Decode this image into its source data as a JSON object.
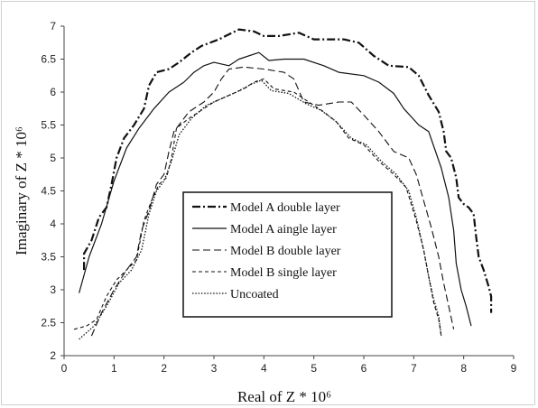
{
  "chart_data": {
    "type": "line",
    "xlabel": "Real of  Z * 10⁶",
    "ylabel": "Imaginary    of  Z * 10⁶",
    "xlim": [
      0,
      9
    ],
    "ylim": [
      2,
      7
    ],
    "x_ticks": [
      "0",
      "1",
      "2",
      "3",
      "4",
      "5",
      "6",
      "7",
      "8",
      "9"
    ],
    "y_ticks": [
      "2",
      "2.5",
      "3",
      "3.5",
      "4",
      "4.5",
      "5",
      "5.5",
      "6",
      "6.5",
      "7"
    ],
    "grid": false,
    "legend_position": "center",
    "series": [
      {
        "name": "Model A double layer",
        "dash": "9 3 2 3",
        "width": 2.2,
        "points": [
          [
            0.4,
            3.3
          ],
          [
            0.4,
            3.55
          ],
          [
            0.55,
            3.75
          ],
          [
            0.7,
            4.1
          ],
          [
            0.85,
            4.25
          ],
          [
            0.95,
            4.6
          ],
          [
            1.05,
            5.0
          ],
          [
            1.2,
            5.3
          ],
          [
            1.4,
            5.5
          ],
          [
            1.6,
            5.75
          ],
          [
            1.7,
            6.1
          ],
          [
            1.85,
            6.3
          ],
          [
            2.1,
            6.35
          ],
          [
            2.3,
            6.45
          ],
          [
            2.55,
            6.6
          ],
          [
            2.75,
            6.7
          ],
          [
            3.1,
            6.8
          ],
          [
            3.5,
            6.95
          ],
          [
            3.8,
            6.92
          ],
          [
            4.0,
            6.85
          ],
          [
            4.3,
            6.85
          ],
          [
            4.7,
            6.9
          ],
          [
            5.0,
            6.8
          ],
          [
            5.6,
            6.8
          ],
          [
            5.9,
            6.75
          ],
          [
            6.2,
            6.55
          ],
          [
            6.5,
            6.4
          ],
          [
            6.9,
            6.38
          ],
          [
            7.1,
            6.25
          ],
          [
            7.3,
            5.95
          ],
          [
            7.5,
            5.7
          ],
          [
            7.6,
            5.4
          ],
          [
            7.65,
            5.1
          ],
          [
            7.75,
            5.0
          ],
          [
            7.85,
            4.7
          ],
          [
            7.9,
            4.4
          ],
          [
            8.0,
            4.3
          ],
          [
            8.1,
            4.25
          ],
          [
            8.2,
            4.15
          ],
          [
            8.25,
            3.8
          ],
          [
            8.3,
            3.5
          ],
          [
            8.4,
            3.3
          ],
          [
            8.5,
            3.05
          ],
          [
            8.55,
            2.9
          ],
          [
            8.55,
            2.65
          ]
        ]
      },
      {
        "name": "Model A aingle layer",
        "dash": "",
        "width": 1.2,
        "points": [
          [
            0.3,
            2.95
          ],
          [
            0.5,
            3.5
          ],
          [
            0.75,
            4.0
          ],
          [
            1.0,
            4.65
          ],
          [
            1.25,
            5.15
          ],
          [
            1.5,
            5.45
          ],
          [
            1.8,
            5.75
          ],
          [
            2.1,
            6.0
          ],
          [
            2.4,
            6.15
          ],
          [
            2.6,
            6.3
          ],
          [
            2.8,
            6.4
          ],
          [
            3.0,
            6.45
          ],
          [
            3.3,
            6.4
          ],
          [
            3.5,
            6.5
          ],
          [
            3.9,
            6.6
          ],
          [
            4.1,
            6.48
          ],
          [
            4.4,
            6.5
          ],
          [
            4.8,
            6.5
          ],
          [
            5.2,
            6.4
          ],
          [
            5.5,
            6.3
          ],
          [
            6.0,
            6.25
          ],
          [
            6.3,
            6.15
          ],
          [
            6.6,
            5.98
          ],
          [
            6.8,
            5.75
          ],
          [
            7.1,
            5.5
          ],
          [
            7.3,
            5.4
          ],
          [
            7.55,
            4.85
          ],
          [
            7.7,
            4.4
          ],
          [
            7.8,
            3.9
          ],
          [
            7.85,
            3.4
          ],
          [
            7.95,
            3.0
          ],
          [
            8.05,
            2.75
          ],
          [
            8.15,
            2.45
          ]
        ]
      },
      {
        "name": "Model B double layer",
        "dash": "8 4",
        "width": 1.1,
        "points": [
          [
            0.55,
            2.3
          ],
          [
            0.75,
            2.65
          ],
          [
            1.0,
            3.0
          ],
          [
            1.25,
            3.3
          ],
          [
            1.45,
            3.5
          ],
          [
            1.55,
            3.9
          ],
          [
            1.7,
            4.2
          ],
          [
            1.85,
            4.6
          ],
          [
            2.0,
            4.75
          ],
          [
            2.1,
            5.1
          ],
          [
            2.2,
            5.4
          ],
          [
            2.5,
            5.7
          ],
          [
            2.8,
            5.85
          ],
          [
            3.0,
            6.0
          ],
          [
            3.15,
            6.2
          ],
          [
            3.3,
            6.35
          ],
          [
            3.6,
            6.38
          ],
          [
            4.0,
            6.35
          ],
          [
            4.4,
            6.3
          ],
          [
            4.6,
            6.2
          ],
          [
            4.8,
            5.85
          ],
          [
            5.1,
            5.8
          ],
          [
            5.5,
            5.85
          ],
          [
            5.75,
            5.85
          ],
          [
            6.0,
            5.65
          ],
          [
            6.3,
            5.4
          ],
          [
            6.6,
            5.1
          ],
          [
            6.9,
            5.0
          ],
          [
            7.05,
            4.75
          ],
          [
            7.2,
            4.35
          ],
          [
            7.35,
            3.95
          ],
          [
            7.5,
            3.5
          ],
          [
            7.6,
            3.1
          ],
          [
            7.7,
            2.75
          ],
          [
            7.8,
            2.4
          ]
        ]
      },
      {
        "name": "Model B single layer",
        "dash": "4 3",
        "width": 1.1,
        "points": [
          [
            0.2,
            2.4
          ],
          [
            0.45,
            2.45
          ],
          [
            0.65,
            2.55
          ],
          [
            0.85,
            2.9
          ],
          [
            1.05,
            3.15
          ],
          [
            1.25,
            3.3
          ],
          [
            1.45,
            3.45
          ],
          [
            1.6,
            4.05
          ],
          [
            1.75,
            4.35
          ],
          [
            1.9,
            4.6
          ],
          [
            2.05,
            4.7
          ],
          [
            2.15,
            5.0
          ],
          [
            2.25,
            5.45
          ],
          [
            2.5,
            5.6
          ],
          [
            2.8,
            5.75
          ],
          [
            3.0,
            5.85
          ],
          [
            3.3,
            5.95
          ],
          [
            3.6,
            6.05
          ],
          [
            3.8,
            6.15
          ],
          [
            4.0,
            6.2
          ],
          [
            4.2,
            6.05
          ],
          [
            4.6,
            6.0
          ],
          [
            4.9,
            5.85
          ],
          [
            5.2,
            5.7
          ],
          [
            5.45,
            5.55
          ],
          [
            5.7,
            5.3
          ],
          [
            6.0,
            5.2
          ],
          [
            6.3,
            4.95
          ],
          [
            6.6,
            4.75
          ],
          [
            6.85,
            4.55
          ],
          [
            7.05,
            4.05
          ],
          [
            7.2,
            3.6
          ],
          [
            7.3,
            3.2
          ],
          [
            7.4,
            2.8
          ],
          [
            7.5,
            2.55
          ],
          [
            7.55,
            2.3
          ]
        ]
      },
      {
        "name": "Uncoated",
        "dash": "1.5 1.8",
        "width": 1.3,
        "points": [
          [
            0.3,
            2.25
          ],
          [
            0.6,
            2.45
          ],
          [
            0.85,
            2.75
          ],
          [
            1.1,
            3.1
          ],
          [
            1.35,
            3.3
          ],
          [
            1.55,
            3.6
          ],
          [
            1.7,
            4.15
          ],
          [
            1.85,
            4.5
          ],
          [
            2.0,
            4.65
          ],
          [
            2.15,
            4.95
          ],
          [
            2.3,
            5.35
          ],
          [
            2.55,
            5.6
          ],
          [
            2.85,
            5.8
          ],
          [
            3.15,
            5.9
          ],
          [
            3.45,
            6.0
          ],
          [
            3.75,
            6.12
          ],
          [
            3.95,
            6.18
          ],
          [
            4.15,
            6.02
          ],
          [
            4.5,
            5.98
          ],
          [
            4.85,
            5.82
          ],
          [
            5.15,
            5.72
          ],
          [
            5.45,
            5.55
          ],
          [
            5.75,
            5.3
          ],
          [
            6.05,
            5.2
          ],
          [
            6.35,
            4.95
          ],
          [
            6.65,
            4.75
          ],
          [
            6.9,
            4.5
          ],
          [
            7.05,
            4.1
          ],
          [
            7.2,
            3.6
          ],
          [
            7.3,
            3.2
          ],
          [
            7.4,
            2.85
          ],
          [
            7.5,
            2.6
          ],
          [
            7.55,
            2.3
          ]
        ]
      }
    ]
  }
}
